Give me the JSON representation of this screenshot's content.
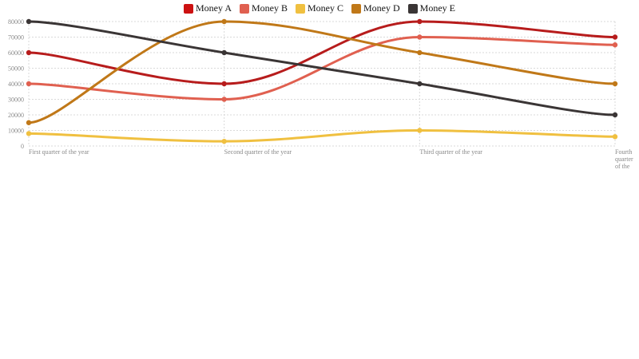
{
  "chart_data": {
    "type": "line",
    "title": "",
    "xlabel": "",
    "ylabel": "",
    "categories": [
      "First quarter of the year",
      "Second quarter of the year",
      "Third quarter of the year",
      "Fourth quarter of the year"
    ],
    "y_ticks": [
      "0",
      "10000",
      "20000",
      "30000",
      "40000",
      "50000",
      "60000",
      "70000",
      "80000"
    ],
    "ylim": [
      0,
      80000
    ],
    "grid": true,
    "legend_position": "top",
    "smooth": true,
    "series": [
      {
        "name": "Money A",
        "color": "#b71c1c",
        "swatch_color": "#cc1111",
        "values": [
          60000,
          40000,
          80000,
          70000
        ]
      },
      {
        "name": "Money B",
        "color": "#e06050",
        "swatch_color": "#e06050",
        "values": [
          40000,
          30000,
          70000,
          65000
        ]
      },
      {
        "name": "Money C",
        "color": "#f0c040",
        "swatch_color": "#f0c040",
        "values": [
          8000,
          3000,
          10000,
          6000
        ]
      },
      {
        "name": "Money D",
        "color": "#c07818",
        "swatch_color": "#c07818",
        "values": [
          15000,
          80000,
          60000,
          40000
        ]
      },
      {
        "name": "Money E",
        "color": "#3a3535",
        "swatch_color": "#3a3535",
        "values": [
          80000,
          60000,
          40000,
          20000
        ]
      }
    ]
  }
}
